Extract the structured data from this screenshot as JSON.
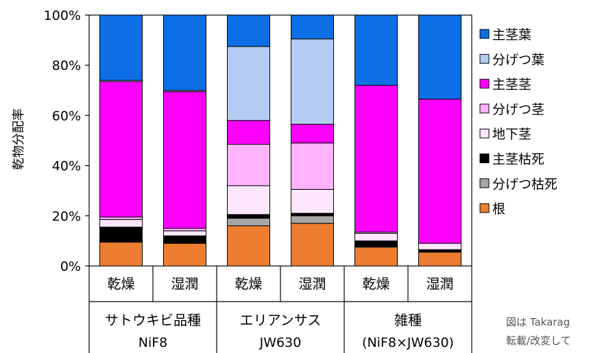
{
  "chart_data": {
    "type": "bar",
    "stacked": true,
    "ylabel": "乾物分配率",
    "ylim": [
      0,
      100
    ],
    "yticks": [
      "0%",
      "20%",
      "40%",
      "60%",
      "80%",
      "100%"
    ],
    "bars": [
      {
        "condition": "乾燥",
        "group": 0
      },
      {
        "condition": "湿潤",
        "group": 0
      },
      {
        "condition": "乾燥",
        "group": 1
      },
      {
        "condition": "湿潤",
        "group": 1
      },
      {
        "condition": "乾燥",
        "group": 2
      },
      {
        "condition": "湿潤",
        "group": 2
      }
    ],
    "groups": [
      {
        "line1": "サトウキビ品種",
        "line2": "NiF8"
      },
      {
        "line1": "エリアンサス",
        "line2": "JW630"
      },
      {
        "line1": "雑種",
        "line2": "(NiF8×JW630)"
      }
    ],
    "series": [
      {
        "name": "根",
        "color": "#ed7d31",
        "values": [
          9.5,
          9,
          16,
          17,
          7.5,
          5.5
        ]
      },
      {
        "name": "分げつ枯死",
        "color": "#a6a6a6",
        "values": [
          0,
          0,
          3,
          3,
          0,
          0
        ]
      },
      {
        "name": "主茎枯死",
        "color": "#000000",
        "values": [
          6,
          3,
          1.5,
          1,
          2.5,
          1
        ]
      },
      {
        "name": "地下茎",
        "color": "#ffe6ff",
        "values": [
          3,
          2,
          11.5,
          9.5,
          3,
          2.5
        ]
      },
      {
        "name": "分げつ茎",
        "color": "#ffb3ff",
        "values": [
          1,
          1,
          16.5,
          18.5,
          0.5,
          0
        ]
      },
      {
        "name": "主茎茎",
        "color": "#ff00ff",
        "values": [
          54,
          54.5,
          9.5,
          7.5,
          58.5,
          57.5
        ]
      },
      {
        "name": "分げつ葉",
        "color": "#b4ccf2",
        "values": [
          0.5,
          0.5,
          29.5,
          34,
          0,
          0
        ]
      },
      {
        "name": "主茎葉",
        "color": "#0d6ee6",
        "values": [
          26,
          30,
          12.5,
          9.5,
          28,
          33.5
        ]
      }
    ],
    "legend_order": [
      "主茎葉",
      "分げつ葉",
      "主茎茎",
      "分げつ茎",
      "地下茎",
      "主茎枯死",
      "分げつ枯死",
      "根"
    ],
    "legend_position": "right"
  },
  "note": {
    "line1": "図は Takarag",
    "line2": "転載/改変して"
  }
}
